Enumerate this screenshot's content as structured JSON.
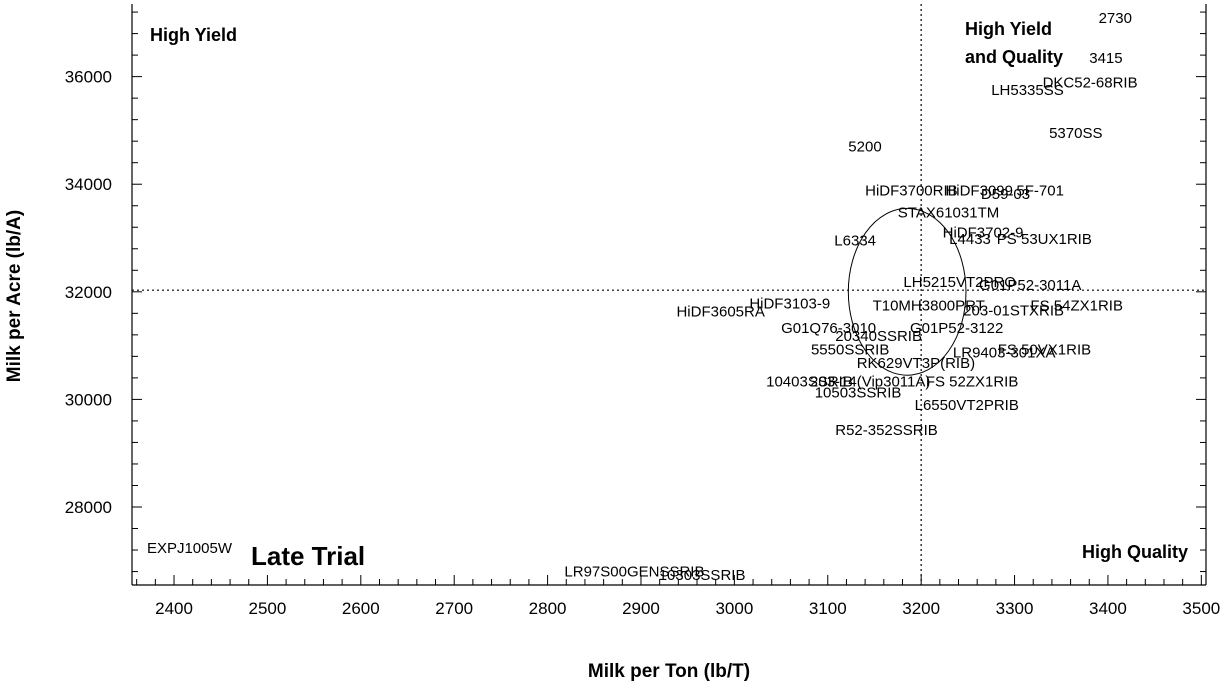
{
  "chart_data": {
    "type": "scatter",
    "xlabel": "Milk per Ton (lb/T)",
    "ylabel": "Milk per Acre (lb/A)",
    "xlim": [
      2355,
      3505
    ],
    "ylim": [
      26550,
      37350
    ],
    "xticks": [
      2400,
      2500,
      2600,
      2700,
      2800,
      2900,
      3000,
      3100,
      3200,
      3300,
      3400,
      3500
    ],
    "yticks": [
      28000,
      30000,
      32000,
      34000,
      36000
    ],
    "reference_lines": {
      "x": 3200,
      "y": 32030
    },
    "ellipse": {
      "cx": 3185,
      "cy": 32000,
      "rx": 63,
      "ry": 1550
    },
    "quadrant_labels": {
      "top_left": "High Yield",
      "top_right_line1": "High Yield",
      "top_right_line2": "and Quality",
      "bottom_left": "Late Trial",
      "bottom_right": "High Quality"
    },
    "points": [
      {
        "label": "2730",
        "x": 3390,
        "y": 37090
      },
      {
        "label": "3415",
        "x": 3380,
        "y": 36350
      },
      {
        "label": "DKC52-68RIB",
        "x": 3330,
        "y": 35890
      },
      {
        "label": "LH5335SS",
        "x": 3275,
        "y": 35750
      },
      {
        "label": "5370SS",
        "x": 3337,
        "y": 34950
      },
      {
        "label": "5200",
        "x": 3122,
        "y": 34700
      },
      {
        "label": "HiDF3700RIB",
        "x": 3140,
        "y": 33880
      },
      {
        "label": "HiDF3099",
        "x": 3226,
        "y": 33880
      },
      {
        "label": "D59-03",
        "x": 3264,
        "y": 33820
      },
      {
        "label": "5F-701",
        "x": 3302,
        "y": 33880
      },
      {
        "label": "STAX61031TM",
        "x": 3175,
        "y": 33470
      },
      {
        "label": "HiDF3702-9",
        "x": 3223,
        "y": 33100
      },
      {
        "label": "L4433",
        "x": 3230,
        "y": 32980
      },
      {
        "label": "L6334",
        "x": 3107,
        "y": 32950
      },
      {
        "label": "PS 53UX1RIB",
        "x": 3281,
        "y": 32980
      },
      {
        "label": "LH5215VT2PRO",
        "x": 3181,
        "y": 32180
      },
      {
        "label": "G01P52-3011A",
        "x": 3262,
        "y": 32130
      },
      {
        "label": "T10MH3800PRT",
        "x": 3148,
        "y": 31750
      },
      {
        "label": "HiDF3103-9",
        "x": 3016,
        "y": 31780
      },
      {
        "label": "HiDF3605RA",
        "x": 2938,
        "y": 31630
      },
      {
        "label": "203-01STXRIB",
        "x": 3245,
        "y": 31650
      },
      {
        "label": "FS 54ZX1RIB",
        "x": 3317,
        "y": 31750
      },
      {
        "label": "G01Q76-3010",
        "x": 3050,
        "y": 31330
      },
      {
        "label": "G01P52-3122",
        "x": 3188,
        "y": 31330
      },
      {
        "label": "20340SSRIB",
        "x": 3108,
        "y": 31180
      },
      {
        "label": "5550SSRIB",
        "x": 3082,
        "y": 30930
      },
      {
        "label": "LR9403-301XA",
        "x": 3234,
        "y": 30870
      },
      {
        "label": "FS 50VX1RIB",
        "x": 3282,
        "y": 30930
      },
      {
        "label": "RK629VT3P(RIB)",
        "x": 3131,
        "y": 30680
      },
      {
        "label": "10403SSRIB",
        "x": 3034,
        "y": 30330
      },
      {
        "label": "203-14(Vip3011A)",
        "x": 3081,
        "y": 30330
      },
      {
        "label": "FS 52ZX1RIB",
        "x": 3205,
        "y": 30330
      },
      {
        "label": "10503SSRIB",
        "x": 3086,
        "y": 30130
      },
      {
        "label": "L6550VT2PRIB",
        "x": 3193,
        "y": 29900
      },
      {
        "label": "R52-352SSRIB",
        "x": 3108,
        "y": 29430
      },
      {
        "label": "EXPJ1005W",
        "x": 2371,
        "y": 27240
      },
      {
        "label": "LR97S00GENSSRIB",
        "x": 2818,
        "y": 26800
      },
      {
        "label": "10303SSRIB",
        "x": 2919,
        "y": 26740
      }
    ]
  }
}
